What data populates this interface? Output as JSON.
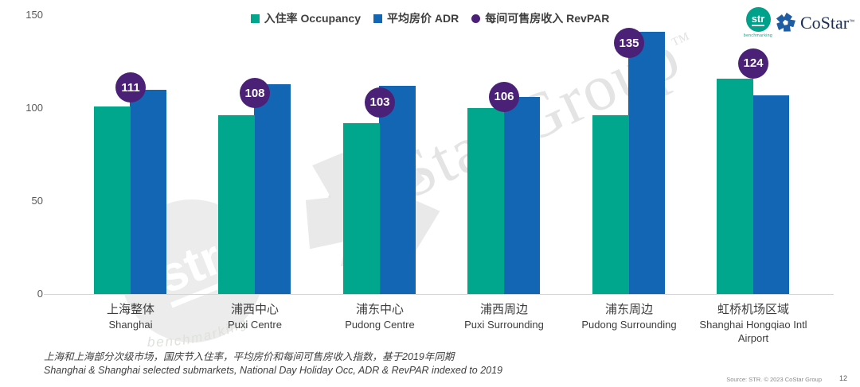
{
  "legend": [
    {
      "label": "入住率 Occupancy",
      "marker": "square",
      "color": "#00a78c"
    },
    {
      "label": "平均房价 ADR",
      "marker": "square",
      "color": "#1266b3"
    },
    {
      "label": "每间可售房收入 RevPAR",
      "marker": "circle",
      "color": "#4b2077"
    }
  ],
  "chart_data": {
    "type": "bar",
    "categories": [
      {
        "zh": "上海整体",
        "en": "Shanghai"
      },
      {
        "zh": "浦西中心",
        "en": "Puxi Centre"
      },
      {
        "zh": "浦东中心",
        "en": "Pudong Centre"
      },
      {
        "zh": "浦西周边",
        "en": "Puxi Surrounding"
      },
      {
        "zh": "浦东周边",
        "en": "Pudong Surrounding"
      },
      {
        "zh": "虹桥机场区域",
        "en": "Shanghai Hongqiao Intl Airport"
      }
    ],
    "series": [
      {
        "name": "入住率 Occupancy",
        "type": "bar",
        "color": "#00a78c",
        "values": [
          101,
          96,
          92,
          100,
          96,
          116
        ]
      },
      {
        "name": "平均房价 ADR",
        "type": "bar",
        "color": "#1266b3",
        "values": [
          110,
          113,
          112,
          106,
          141,
          107
        ]
      },
      {
        "name": "每间可售房收入 RevPAR",
        "type": "point-label",
        "color": "#4b2077",
        "values": [
          111,
          108,
          103,
          106,
          135,
          124
        ]
      }
    ],
    "ylim": [
      0,
      150
    ],
    "yticks": [
      0,
      50,
      100,
      150
    ],
    "grid": false,
    "legend_position": "top"
  },
  "footer": {
    "line_zh": "上海和上海部分次级市场，国庆节入住率，平均房价和每间可售房收入指数，基于2019年同期",
    "line_en": "Shanghai & Shanghai selected submarkets, National Day Holiday Occ, ADR & RevPAR indexed to 2019"
  },
  "source": {
    "text": "Source: STR. © 2023 CoStar Group",
    "page": "12"
  },
  "logos": {
    "str": {
      "text": "str",
      "sub": "benchmarking"
    },
    "costar": {
      "text": "CoStar",
      "tm": "™"
    }
  },
  "watermarks": {
    "costar_text": "CoStar Group",
    "costar_tm": "™",
    "str_text": "str",
    "benchmarking": "benchmarking"
  },
  "colors": {
    "occupancy": "#00a78c",
    "adr": "#1266b3",
    "revpar": "#4b2077",
    "axis_line": "#d6d6d6",
    "watermark": "#e9e9e9"
  }
}
